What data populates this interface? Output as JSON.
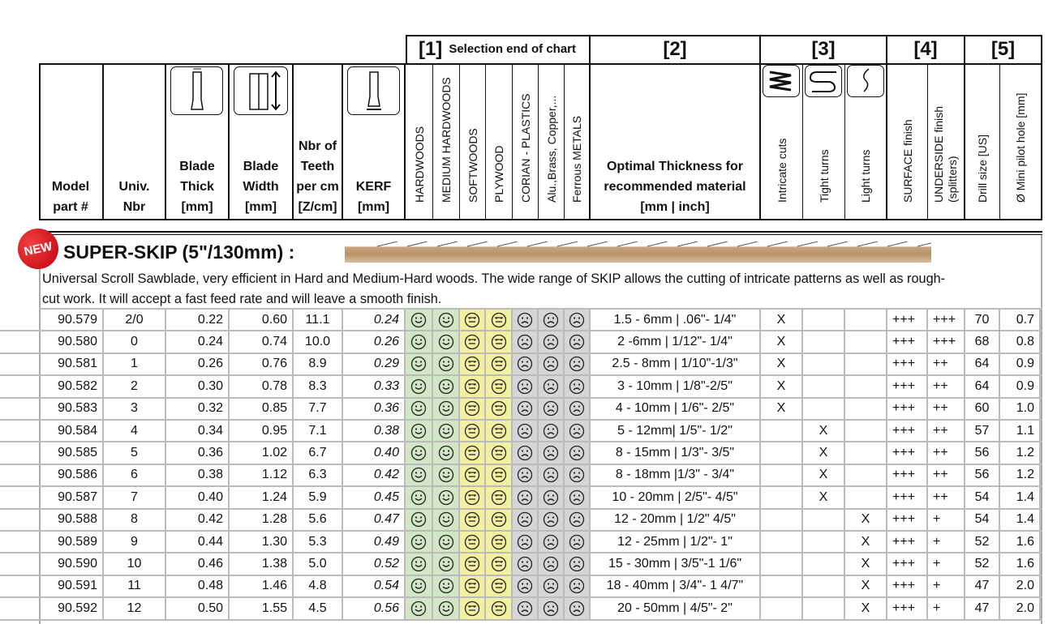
{
  "header": {
    "groups": [
      {
        "num": "[1]",
        "label": "Selection end of chart"
      },
      {
        "num": "[2]"
      },
      {
        "num": "[3]"
      },
      {
        "num": "[4]"
      },
      {
        "num": "[5]"
      }
    ],
    "model": [
      "Model",
      "part #"
    ],
    "univ": [
      "Univ.",
      "Nbr"
    ],
    "thick": [
      "Blade",
      "Thick",
      "[mm]"
    ],
    "width": [
      "Blade",
      "Width",
      "[mm]"
    ],
    "teeth": [
      "Nbr of",
      "Teeth",
      "per cm",
      "[Z/cm]"
    ],
    "kerf": [
      "KERF",
      "[mm]"
    ],
    "materials": [
      "HARDWOODS",
      "MEDIUM HARDWOODS",
      "SOFTWOODS",
      "PLYWOOD",
      "CORIAN - PLASTICS",
      "Alu.,Brass, Copper,...",
      "Ferrous METALS"
    ],
    "thickness": [
      "Optimal Thickness for",
      "recommended material",
      "[mm | inch]"
    ],
    "cuts": [
      "Intricate cuts",
      "Tight turns",
      "Light turns"
    ],
    "finish": [
      "SURFACE finish",
      "UNDERSIDE finish",
      "(splitters)"
    ],
    "drill": [
      "Drill size [US]",
      "Ø Mini pilot hole [mm]"
    ]
  },
  "section": {
    "badge": "NEW",
    "title": "SUPER-SKIP (5\"/130mm) :",
    "desc1": "Universal Scroll Sawblade, very efficient in Hard and Medium-Hard woods. The wide range of SKIP allows the cutting of intricate patterns as well as rough-",
    "desc2": "cut work. It will accept a fast feed rate and will leave a smooth finish."
  },
  "ratings": {
    "faces": [
      "happy",
      "happy",
      "neutral",
      "neutral",
      "sad",
      "sad",
      "sad"
    ],
    "colors": {
      "happy": "#d3e6c6",
      "neutral": "#f4f0a2",
      "sad": "#d6d6d6"
    }
  },
  "rows": [
    [
      "90.579",
      "2/0",
      "0.22",
      "0.60",
      "11.1",
      "0.24",
      "1.5 - 6mm | .06\"- 1/4\"",
      "X",
      "",
      "",
      "+++",
      "+++",
      "70",
      "0.7"
    ],
    [
      "90.580",
      "0",
      "0.24",
      "0.74",
      "10.0",
      "0.26",
      "2 -6mm | 1/12\"- 1/4\"",
      "X",
      "",
      "",
      "+++",
      "+++",
      "68",
      "0.8"
    ],
    [
      "90.581",
      "1",
      "0.26",
      "0.76",
      "8.9",
      "0.29",
      "2.5 - 8mm | 1/10\"-1/3\"",
      "X",
      "",
      "",
      "+++",
      "++",
      "64",
      "0.9"
    ],
    [
      "90.582",
      "2",
      "0.30",
      "0.78",
      "8.3",
      "0.33",
      "3 - 10mm | 1/8\"-2/5\"",
      "X",
      "",
      "",
      "+++",
      "++",
      "64",
      "0.9"
    ],
    [
      "90.583",
      "3",
      "0.32",
      "0.85",
      "7.7",
      "0.36",
      "4 - 10mm | 1/6\"- 2/5\"",
      "X",
      "",
      "",
      "+++",
      "++",
      "60",
      "1.0"
    ],
    [
      "90.584",
      "4",
      "0.34",
      "0.95",
      "7.1",
      "0.38",
      "5 - 12mm| 1/5\"- 1/2\"",
      "",
      "X",
      "",
      "+++",
      "++",
      "57",
      "1.1"
    ],
    [
      "90.585",
      "5",
      "0.36",
      "1.02",
      "6.7",
      "0.40",
      "8 - 15mm | 1/3\"- 3/5\"",
      "",
      "X",
      "",
      "+++",
      "++",
      "56",
      "1.2"
    ],
    [
      "90.586",
      "6",
      "0.38",
      "1.12",
      "6.3",
      "0.42",
      "8 - 18mm |1/3\" - 3/4\"",
      "",
      "X",
      "",
      "+++",
      "++",
      "56",
      "1.2"
    ],
    [
      "90.587",
      "7",
      "0.40",
      "1.24",
      "5.9",
      "0.45",
      "10 - 20mm | 2/5\"- 4/5\"",
      "",
      "X",
      "",
      "+++",
      "++",
      "54",
      "1.4"
    ],
    [
      "90.588",
      "8",
      "0.42",
      "1.28",
      "5.6",
      "0.47",
      "12 - 20mm | 1/2\" 4/5\"",
      "",
      "",
      "X",
      "+++",
      "+",
      "54",
      "1.4"
    ],
    [
      "90.589",
      "9",
      "0.44",
      "1.30",
      "5.3",
      "0.49",
      "12 - 25mm | 1/2\"- 1\"",
      "",
      "",
      "X",
      "+++",
      "+",
      "52",
      "1.6"
    ],
    [
      "90.590",
      "10",
      "0.46",
      "1.38",
      "5.0",
      "0.52",
      "15 - 30mm | 3/5\"-1 1/6\"",
      "",
      "",
      "X",
      "+++",
      "+",
      "52",
      "1.6"
    ],
    [
      "90.591",
      "11",
      "0.48",
      "1.46",
      "4.8",
      "0.54",
      "18 - 40mm | 3/4\"- 1 4/7\"",
      "",
      "",
      "X",
      "+++",
      "+",
      "47",
      "2.0"
    ],
    [
      "90.592",
      "12",
      "0.50",
      "1.55",
      "4.5",
      "0.56",
      "20 - 50mm | 4/5\"- 2\"",
      "",
      "",
      "X",
      "+++",
      "+",
      "47",
      "2.0"
    ]
  ]
}
